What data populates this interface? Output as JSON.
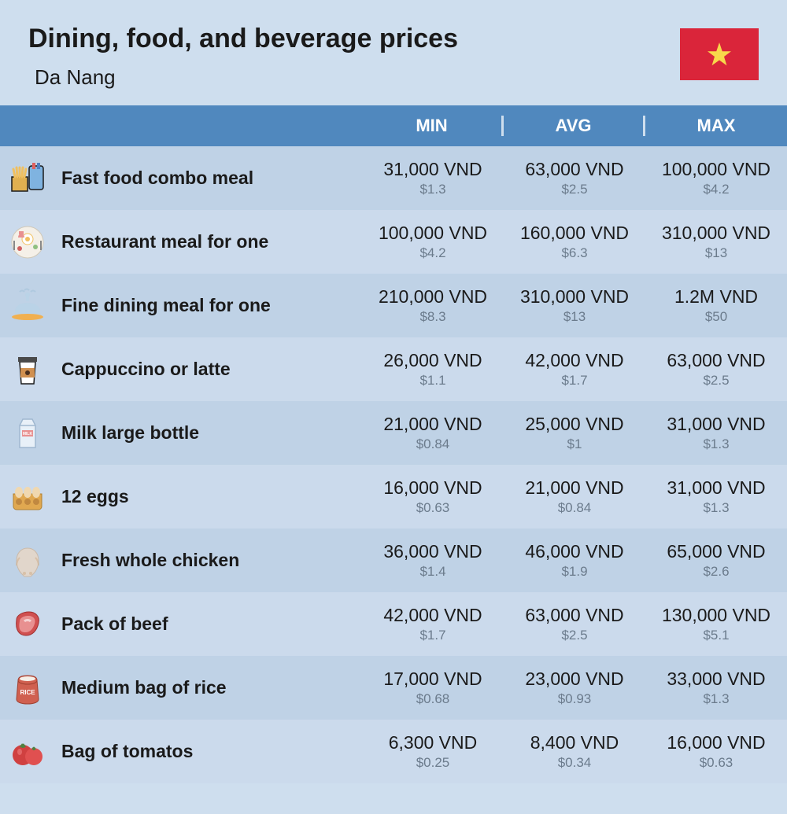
{
  "title": "Dining, food, and beverage prices",
  "subtitle": "Da Nang",
  "columns": {
    "min": "MIN",
    "avg": "AVG",
    "max": "MAX"
  },
  "flag": {
    "bg": "#da253a",
    "star": "#f8d84b"
  },
  "rows": [
    {
      "icon": "fast-food",
      "label": "Fast food combo meal",
      "min": {
        "vnd": "31,000 VND",
        "usd": "$1.3"
      },
      "avg": {
        "vnd": "63,000 VND",
        "usd": "$2.5"
      },
      "max": {
        "vnd": "100,000 VND",
        "usd": "$4.2"
      }
    },
    {
      "icon": "restaurant",
      "label": "Restaurant meal for one",
      "min": {
        "vnd": "100,000 VND",
        "usd": "$4.2"
      },
      "avg": {
        "vnd": "160,000 VND",
        "usd": "$6.3"
      },
      "max": {
        "vnd": "310,000 VND",
        "usd": "$13"
      }
    },
    {
      "icon": "fine-dining",
      "label": "Fine dining meal for one",
      "min": {
        "vnd": "210,000 VND",
        "usd": "$8.3"
      },
      "avg": {
        "vnd": "310,000 VND",
        "usd": "$13"
      },
      "max": {
        "vnd": "1.2M VND",
        "usd": "$50"
      }
    },
    {
      "icon": "coffee",
      "label": "Cappuccino or latte",
      "min": {
        "vnd": "26,000 VND",
        "usd": "$1.1"
      },
      "avg": {
        "vnd": "42,000 VND",
        "usd": "$1.7"
      },
      "max": {
        "vnd": "63,000 VND",
        "usd": "$2.5"
      }
    },
    {
      "icon": "milk",
      "label": "Milk large bottle",
      "min": {
        "vnd": "21,000 VND",
        "usd": "$0.84"
      },
      "avg": {
        "vnd": "25,000 VND",
        "usd": "$1"
      },
      "max": {
        "vnd": "31,000 VND",
        "usd": "$1.3"
      }
    },
    {
      "icon": "eggs",
      "label": "12 eggs",
      "min": {
        "vnd": "16,000 VND",
        "usd": "$0.63"
      },
      "avg": {
        "vnd": "21,000 VND",
        "usd": "$0.84"
      },
      "max": {
        "vnd": "31,000 VND",
        "usd": "$1.3"
      }
    },
    {
      "icon": "chicken",
      "label": "Fresh whole chicken",
      "min": {
        "vnd": "36,000 VND",
        "usd": "$1.4"
      },
      "avg": {
        "vnd": "46,000 VND",
        "usd": "$1.9"
      },
      "max": {
        "vnd": "65,000 VND",
        "usd": "$2.6"
      }
    },
    {
      "icon": "beef",
      "label": "Pack of beef",
      "min": {
        "vnd": "42,000 VND",
        "usd": "$1.7"
      },
      "avg": {
        "vnd": "63,000 VND",
        "usd": "$2.5"
      },
      "max": {
        "vnd": "130,000 VND",
        "usd": "$5.1"
      }
    },
    {
      "icon": "rice",
      "label": "Medium bag of rice",
      "min": {
        "vnd": "17,000 VND",
        "usd": "$0.68"
      },
      "avg": {
        "vnd": "23,000 VND",
        "usd": "$0.93"
      },
      "max": {
        "vnd": "33,000 VND",
        "usd": "$1.3"
      }
    },
    {
      "icon": "tomato",
      "label": "Bag of tomatos",
      "min": {
        "vnd": "6,300 VND",
        "usd": "$0.25"
      },
      "avg": {
        "vnd": "8,400 VND",
        "usd": "$0.34"
      },
      "max": {
        "vnd": "16,000 VND",
        "usd": "$0.63"
      }
    }
  ],
  "colors": {
    "bg": "#cedeee",
    "header_bg": "#5088be",
    "row_odd": "#bfd2e6",
    "row_even": "#cbdaec",
    "text": "#1a1a1a",
    "subtext": "#6b7b8c"
  }
}
